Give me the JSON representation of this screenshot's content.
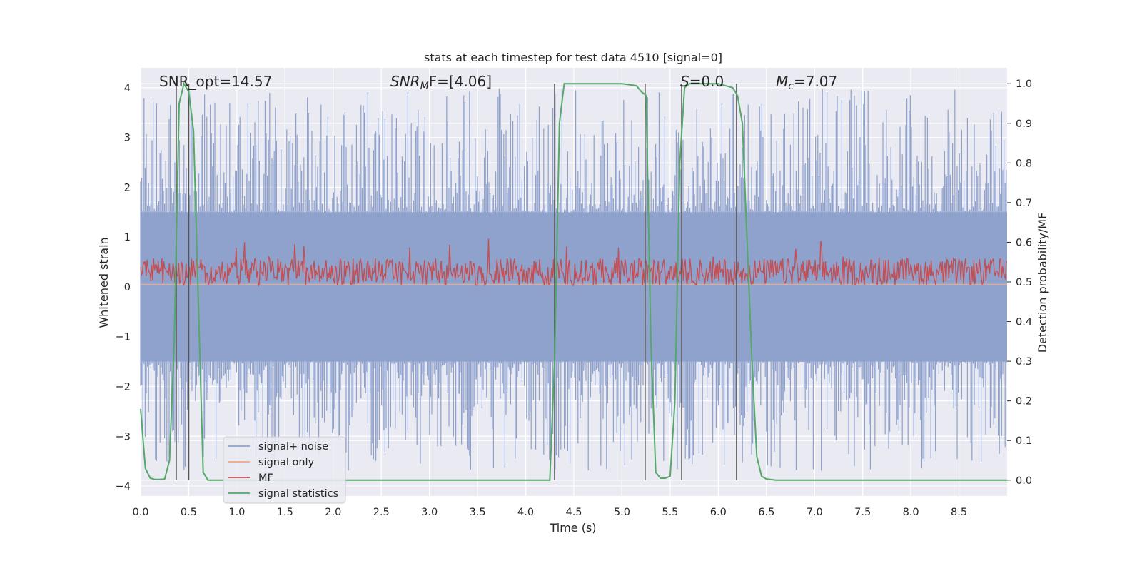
{
  "chart_data": {
    "type": "line",
    "title": "stats at each timestep for test data 4510 [signal=0]",
    "xlabel": "Time (s)",
    "ylabel_left": "Whitened strain",
    "ylabel_right": "Detection probability/MF",
    "xlim": [
      0.0,
      9.0
    ],
    "ylim_left": [
      -4.2,
      4.4
    ],
    "ylim_right": [
      -0.04,
      1.04
    ],
    "xticks": [
      "0.0",
      "0.5",
      "1.0",
      "1.5",
      "2.0",
      "2.5",
      "3.0",
      "3.5",
      "4.0",
      "4.5",
      "5.0",
      "5.5",
      "6.0",
      "6.5",
      "7.0",
      "7.5",
      "8.0",
      "8.5"
    ],
    "yticks_left": [
      "4",
      "3",
      "2",
      "1",
      "0",
      "−1",
      "−2",
      "−3",
      "−4"
    ],
    "yticks_right": [
      "1.0",
      "0.9",
      "0.8",
      "0.7",
      "0.6",
      "0.5",
      "0.4",
      "0.3",
      "0.2",
      "0.1",
      "0.0"
    ],
    "grid": true,
    "legend_placement": "lower-left",
    "annotations": {
      "snr_opt": "SNR_opt=14.57",
      "snr_mf_base": "SNR",
      "snr_mf_sub": "M",
      "snr_mf_rest": "F=[4.06]",
      "s_base": "S",
      "s_rest": "=0.0",
      "mc_base": "M",
      "mc_sub": "c",
      "mc_rest": "=7.07"
    },
    "series": [
      {
        "name": "signal+ noise",
        "color": "#8ea2cc",
        "axis": "left",
        "kind": "noise",
        "envelope_pos": [
          1.5,
          4.0
        ],
        "envelope_neg": [
          -1.5,
          -3.7
        ]
      },
      {
        "name": "signal only",
        "color": "#e8a98a",
        "axis": "left",
        "kind": "flat",
        "value": 0.05
      },
      {
        "name": "MF",
        "color": "#c44e52",
        "axis": "left",
        "kind": "noise",
        "range": [
          0.0,
          1.0
        ],
        "mean": 0.3
      },
      {
        "name": "signal statistics",
        "color": "#55a868",
        "axis": "right",
        "x": [
          0.0,
          0.05,
          0.1,
          0.15,
          0.2,
          0.25,
          0.3,
          0.35,
          0.4,
          0.45,
          0.5,
          0.55,
          0.6,
          0.65,
          0.7,
          1.0,
          2.0,
          3.0,
          4.0,
          4.25,
          4.3,
          4.35,
          4.4,
          4.5,
          5.0,
          5.15,
          5.2,
          5.25,
          5.3,
          5.35,
          5.4,
          5.45,
          5.5,
          5.55,
          5.6,
          5.65,
          5.7,
          5.75,
          5.8,
          6.0,
          6.15,
          6.2,
          6.25,
          6.3,
          6.35,
          6.4,
          6.45,
          6.5,
          6.6,
          7.0,
          8.0,
          9.0
        ],
        "y": [
          0.18,
          0.03,
          0.005,
          0.002,
          0.002,
          0.003,
          0.05,
          0.35,
          0.95,
          1.0,
          0.98,
          0.88,
          0.45,
          0.02,
          0.0,
          0.0,
          0.0,
          0.0,
          0.0,
          0.0,
          0.3,
          0.9,
          1.0,
          1.0,
          1.0,
          0.995,
          0.98,
          0.97,
          0.35,
          0.02,
          0.005,
          0.005,
          0.01,
          0.2,
          0.8,
          0.99,
          1.0,
          1.0,
          1.0,
          1.0,
          0.99,
          0.97,
          0.9,
          0.6,
          0.3,
          0.06,
          0.01,
          0.003,
          0.0,
          0.0,
          0.0,
          0.0
        ]
      }
    ],
    "vertical_lines_x": [
      0.37,
      0.5,
      4.3,
      5.24,
      5.62,
      6.19
    ]
  }
}
